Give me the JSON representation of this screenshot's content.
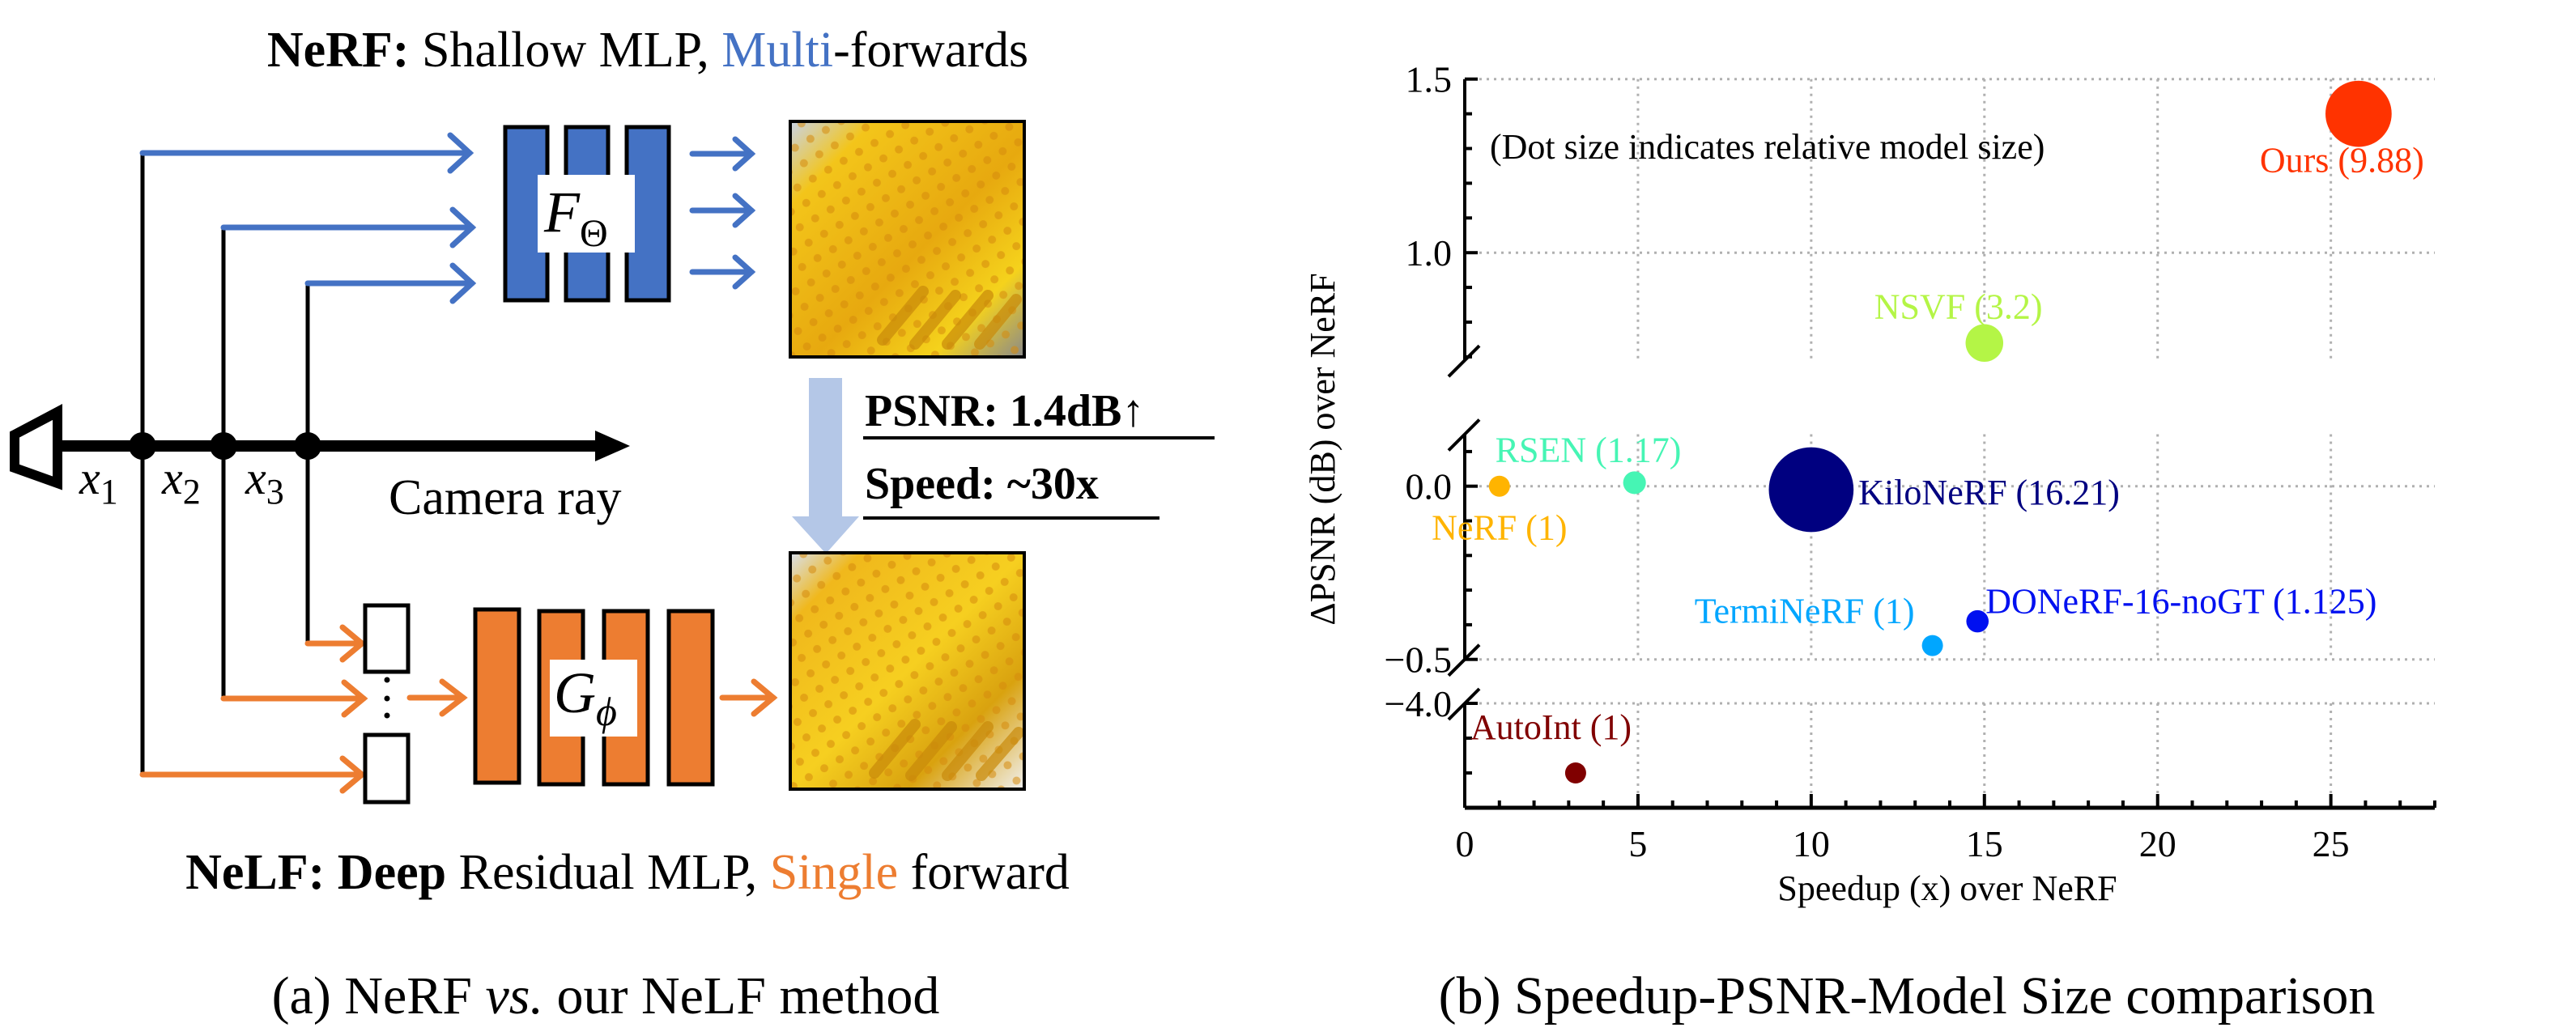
{
  "left_panel": {
    "top_title": {
      "bold_prefix": "NeRF:",
      "text_before": " Shallow MLP, ",
      "highlight": "Multi",
      "text_after": "-forwards",
      "highlight_color": "#4472C4"
    },
    "bottom_title": {
      "bold_prefix": "NeLF: Deep",
      "text_before": " Residual MLP, ",
      "highlight": "Single",
      "text_after": " forward",
      "highlight_color": "#ED7D31"
    },
    "nerf_network_label": {
      "main": "F",
      "sub": "Θ"
    },
    "nelf_network_label": {
      "main": "G",
      "sub": "ϕ"
    },
    "sample_points": [
      {
        "main": "x",
        "sub": "1"
      },
      {
        "main": "x",
        "sub": "2"
      },
      {
        "main": "x",
        "sub": "3"
      }
    ],
    "camera_ray_label": "Camera ray",
    "improvement": {
      "psnr": "PSNR: 1.4dB↑",
      "speed": "Speed: ~30x"
    },
    "colors": {
      "nerf_blue": "#4472C4",
      "nelf_orange": "#ED7D31",
      "transition_arrow": "#B4C7E7"
    },
    "images": [
      {
        "name": "nerf-render",
        "description": "NeRF rendered lego bucket"
      },
      {
        "name": "nelf-render",
        "description": "NeLF rendered lego bucket"
      }
    ],
    "caption": {
      "prefix": "(a) NeRF ",
      "italic": "vs.",
      "suffix": " our NeLF method"
    }
  },
  "right_panel": {
    "caption": "(b) Speedup-PSNR-Model Size comparison"
  },
  "chart_data": {
    "type": "scatter",
    "title": "",
    "xlabel": "Speedup (x) over NeRF",
    "ylabel": "ΔPSNR (dB) over NeRF",
    "annotation": "(Dot size indicates relative model size)",
    "size_meaning": "relative model size (dot area)",
    "xlim": [
      0,
      28
    ],
    "x_ticks": [
      0,
      5,
      10,
      15,
      20,
      25
    ],
    "x_tick_labels": [
      "0",
      "5",
      "10",
      "15",
      "20",
      "25"
    ],
    "x_minor_step": 1,
    "y_axis_broken": true,
    "y_segments": [
      {
        "range": [
          0.69,
          1.5
        ],
        "ticks": [
          1.0,
          1.5
        ],
        "tick_labels": [
          "1.0",
          "1.5"
        ],
        "minor_step": 0.1
      },
      {
        "range": [
          -0.5,
          0.15
        ],
        "ticks": [
          -0.5,
          0.0
        ],
        "tick_labels": [
          "−0.5",
          "0.0"
        ],
        "minor_step": 0.1
      },
      {
        "range": [
          -4.3,
          -4.0
        ],
        "ticks": [
          -4.0
        ],
        "tick_labels": [
          "−4.0"
        ],
        "minor_step": 0.1
      }
    ],
    "grid": true,
    "grid_style": "dotted",
    "series": [
      {
        "name": "NeRF",
        "label": "NeRF (1)",
        "x": 1.0,
        "y": 0.0,
        "size": 1,
        "color": "#FFB400",
        "label_pos": "below"
      },
      {
        "name": "RSEN",
        "label": "RSEN (1.17)",
        "x": 4.9,
        "y": 0.01,
        "size": 1.17,
        "color": "#46F5B4",
        "label_pos": "above"
      },
      {
        "name": "KiloNeRF",
        "label": "KiloNeRF (16.21)",
        "x": 10.0,
        "y": -0.01,
        "size": 16.21,
        "color": "#000080",
        "label_pos": "right"
      },
      {
        "name": "NSVF",
        "label": "NSVF (3.2)",
        "x": 15.0,
        "y": 0.74,
        "size": 3.2,
        "color": "#B4F546",
        "label_pos": "above"
      },
      {
        "name": "Ours",
        "label": "Ours (9.88)",
        "x": 25.8,
        "y": 1.4,
        "size": 9.88,
        "color": "#FF3300",
        "label_pos": "below"
      },
      {
        "name": "TermiNeRF",
        "label": "TermiNeRF (1)",
        "x": 13.5,
        "y": -0.46,
        "size": 1,
        "color": "#00A6FF",
        "label_pos": "upper-left"
      },
      {
        "name": "DONeRF-16-noGT",
        "label": "DONeRF-16-noGT (1.125)",
        "x": 14.8,
        "y": -0.39,
        "size": 1.125,
        "color": "#0010F0",
        "label_pos": "right"
      },
      {
        "name": "AutoInt",
        "label": "AutoInt (1)",
        "x": 3.2,
        "y": -4.2,
        "size": 1,
        "color": "#800000",
        "label_pos": "above"
      }
    ]
  }
}
